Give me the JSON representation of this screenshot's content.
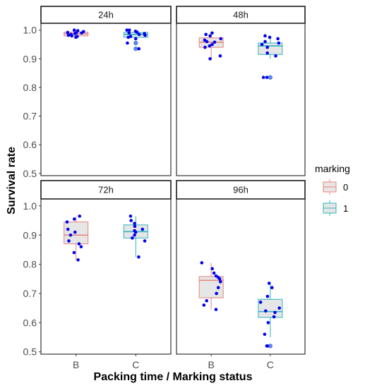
{
  "chart_data": {
    "type": "box",
    "xlabel": "Packing time / Marking status",
    "ylabel": "Survival rate",
    "categories": [
      "B",
      "C"
    ],
    "ylim": [
      0.5,
      1.0
    ],
    "yticks": [
      "0.5",
      "0.6",
      "0.7",
      "0.8",
      "0.9",
      "1.0"
    ],
    "grid": false,
    "legend": {
      "title": "marking",
      "position": "right",
      "entries": [
        {
          "label": "0",
          "color": "#f08080"
        },
        {
          "label": "1",
          "color": "#3fbfc4"
        }
      ]
    },
    "colors": {
      "box_fill": "#e6e6e6",
      "marking_0": "#e8837e",
      "marking_1": "#2fb4bc",
      "points": "#0000ee",
      "outlier": "#5b86e5"
    },
    "panels": [
      {
        "title": "24h",
        "boxes": [
          {
            "category": "B",
            "marking": "0",
            "min": 0.975,
            "q1": 0.98,
            "median": 0.987,
            "q3": 0.993,
            "max": 1.0,
            "outliers": [],
            "points": [
              0.975,
              0.978,
              0.982,
              0.985,
              0.988,
              0.99,
              0.992,
              0.995,
              0.998,
              1.0,
              0.98,
              0.99
            ]
          },
          {
            "category": "C",
            "marking": "1",
            "min": 0.965,
            "q1": 0.975,
            "median": 0.985,
            "q3": 0.992,
            "max": 1.0,
            "outliers": [
              0.935,
              0.955
            ],
            "points": [
              0.935,
              0.955,
              0.97,
              0.978,
              0.985,
              0.99,
              0.993,
              0.996,
              1.0,
              1.0,
              0.988,
              0.982,
              0.975
            ]
          }
        ]
      },
      {
        "title": "48h",
        "boxes": [
          {
            "category": "B",
            "marking": "0",
            "min": 0.9,
            "q1": 0.94,
            "median": 0.958,
            "q3": 0.973,
            "max": 0.99,
            "outliers": [],
            "points": [
              0.9,
              0.91,
              0.94,
              0.945,
              0.95,
              0.958,
              0.96,
              0.965,
              0.97,
              0.98,
              0.985,
              0.99
            ]
          },
          {
            "category": "C",
            "marking": "1",
            "min": 0.9,
            "q1": 0.915,
            "median": 0.945,
            "q3": 0.955,
            "max": 0.98,
            "outliers": [
              0.835
            ],
            "points": [
              0.835,
              0.835,
              0.91,
              0.92,
              0.94,
              0.95,
              0.955,
              0.96,
              0.97,
              0.975,
              0.98
            ]
          }
        ]
      },
      {
        "title": "72h",
        "boxes": [
          {
            "category": "B",
            "marking": "0",
            "min": 0.815,
            "q1": 0.87,
            "median": 0.9,
            "q3": 0.945,
            "max": 0.965,
            "outliers": [],
            "points": [
              0.815,
              0.84,
              0.86,
              0.87,
              0.88,
              0.9,
              0.91,
              0.92,
              0.945,
              0.955,
              0.965
            ]
          },
          {
            "category": "C",
            "marking": "1",
            "min": 0.825,
            "q1": 0.89,
            "median": 0.912,
            "q3": 0.935,
            "max": 0.965,
            "outliers": [],
            "points": [
              0.825,
              0.88,
              0.89,
              0.9,
              0.91,
              0.915,
              0.92,
              0.93,
              0.94,
              0.95,
              0.965
            ]
          }
        ]
      },
      {
        "title": "96h",
        "boxes": [
          {
            "category": "B",
            "marking": "0",
            "min": 0.645,
            "q1": 0.685,
            "median": 0.745,
            "q3": 0.758,
            "max": 0.805,
            "outliers": [],
            "points": [
              0.645,
              0.66,
              0.675,
              0.7,
              0.72,
              0.74,
              0.75,
              0.755,
              0.76,
              0.77,
              0.785,
              0.805
            ]
          },
          {
            "category": "C",
            "marking": "1",
            "min": 0.55,
            "q1": 0.618,
            "median": 0.638,
            "q3": 0.68,
            "max": 0.735,
            "outliers": [
              0.52
            ],
            "points": [
              0.52,
              0.52,
              0.56,
              0.6,
              0.62,
              0.635,
              0.64,
              0.65,
              0.67,
              0.69,
              0.72,
              0.735
            ]
          }
        ]
      }
    ]
  }
}
